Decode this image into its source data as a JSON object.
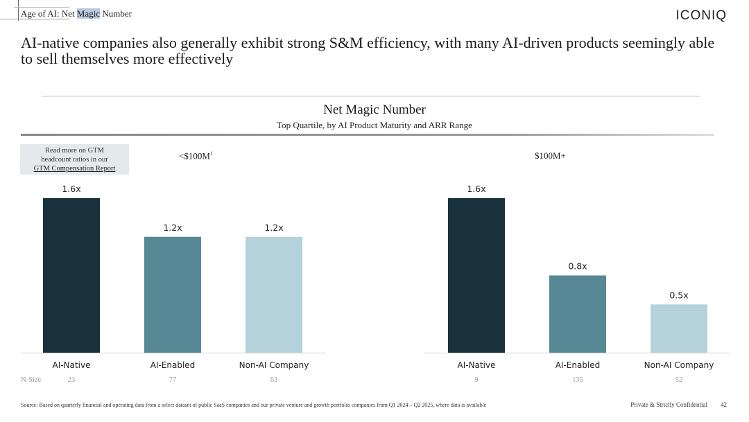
{
  "header": {
    "breadcrumb_pre": "Age of AI: Net ",
    "breadcrumb_highlight": "Magic",
    "breadcrumb_post": " Number",
    "logo": "ICONIQ"
  },
  "headline": "AI-native companies also generally exhibit strong S&M efficiency, with many AI-driven products seemingly able to sell themselves more effectively",
  "callout": {
    "line1": "Read more on GTM",
    "line2": "headcount ratios in our",
    "link": "GTM Compensation Report"
  },
  "colors": {
    "ai_native": "#18313a",
    "ai_enabled": "#578896",
    "non_ai": "#b5d2da",
    "baseline": "#e6e6e6"
  },
  "chart_data": {
    "type": "bar",
    "title": "Net Magic Number",
    "subtitle": "Top Quartile, by AI Product Maturity and ARR Range",
    "xlabel": "",
    "ylabel": "",
    "ylim": [
      0,
      1.6
    ],
    "grid": false,
    "value_suffix": "x",
    "n_size_label": "N-Size",
    "categories": [
      "AI-Native",
      "AI-Enabled",
      "Non-AI Company"
    ],
    "groups": [
      {
        "name": "<$100M",
        "footnote": "1",
        "values": [
          1.6,
          1.2,
          1.2
        ],
        "labels": [
          "1.6x",
          "1.2x",
          "1.2x"
        ],
        "n_size": [
          23,
          77,
          63
        ]
      },
      {
        "name": "$100M+",
        "footnote": "",
        "values": [
          1.6,
          0.8,
          0.5
        ],
        "labels": [
          "1.6x",
          "0.8x",
          "0.5x"
        ],
        "n_size": [
          9,
          135,
          52
        ]
      }
    ]
  },
  "footer": {
    "source": "Source: Based on quarterly financial and operating data from a select dataset of public SaaS companies and our private venture and growth portfolio companies from Q1 2024 – Q2 2025, where data is available",
    "confidential": "Private & Strictly Confidential",
    "page": "42"
  }
}
